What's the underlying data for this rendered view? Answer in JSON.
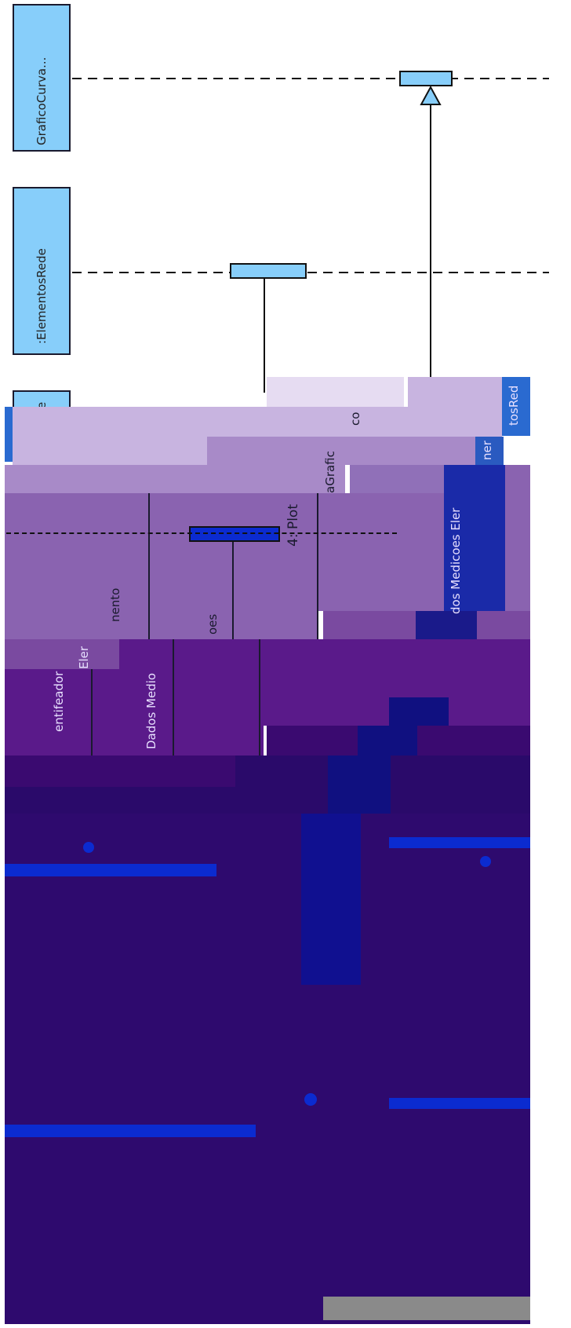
{
  "diagram": {
    "lifelines": [
      {
        "label": "GraficoCurva..."
      },
      {
        "label": ":ElementosRede"
      },
      {
        "label": "e"
      }
    ],
    "fragments": {
      "label_co": "co",
      "label_plot": "4: Plot",
      "label_agrafic": "aGrafic",
      "label_nento": "nento",
      "label_oes": "oes",
      "label_eler": "Eler",
      "label_entifeador": "entifeador",
      "label_dadosmedio": "Dados Medio",
      "label_dosmedicoes": "dos Medicoes Eler",
      "label_ner": "ner",
      "label_tosred": "tosRed"
    }
  },
  "colors": {
    "lifeline_fill": "#87cefa",
    "purple_light": "#c8b4e0",
    "purple_mid": "#8a63b0",
    "purple_dark": "#4a1a80",
    "navy": "#2a0a6a",
    "blue_bar": "#0b2bd0"
  }
}
